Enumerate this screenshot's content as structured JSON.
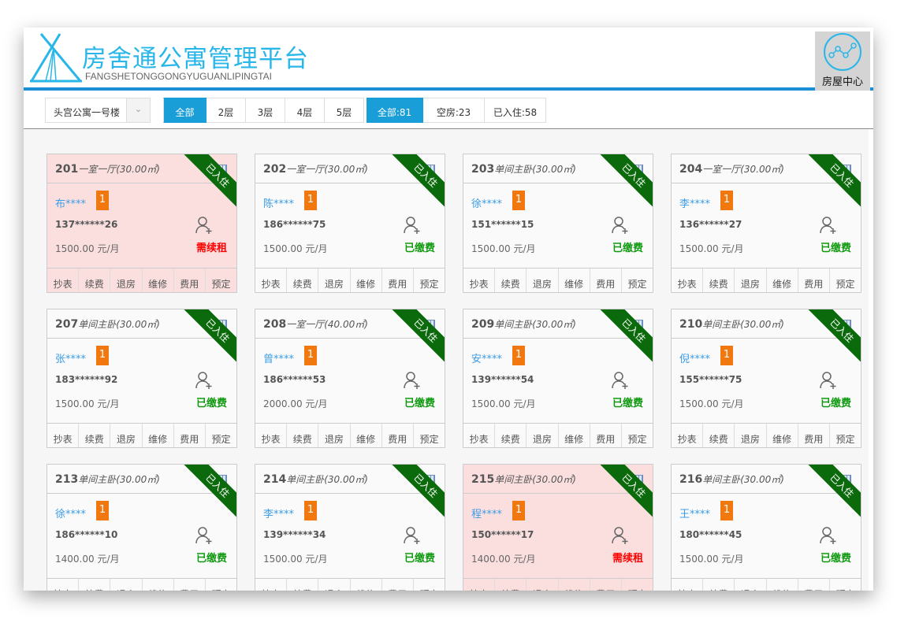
{
  "header": {
    "title": "房舍通公寓管理平台",
    "subtitle": "FANGSHETONGGONGYUGUANLIPINGTAI",
    "house_center": "房屋中心",
    "brand_color": "#29b6e8",
    "accent": "#1a9ed8"
  },
  "toolbar": {
    "building": "头宫公寓一号楼",
    "floors": [
      "全部",
      "2层",
      "3层",
      "4层",
      "5层"
    ],
    "active_floor": 0,
    "filters": [
      "全部:81",
      "空房:23",
      "已入住:58"
    ],
    "active_filter": 0
  },
  "card_actions": [
    "抄表",
    "续费",
    "退房",
    "维修",
    "费用",
    "预定"
  ],
  "ribbon": "已入住",
  "rooms": [
    {
      "num": "201",
      "type": "一室一厅(30.00㎡)",
      "name": "布****",
      "count": "1",
      "phone": "137******26",
      "rent": "1500.00 元/月",
      "status": "需续租",
      "warn": true
    },
    {
      "num": "202",
      "type": "一室一厅(30.00㎡)",
      "name": "陈****",
      "count": "1",
      "phone": "186******75",
      "rent": "1500.00 元/月",
      "status": "已缴费",
      "warn": false
    },
    {
      "num": "203",
      "type": "单间主卧(30.00㎡)",
      "name": "徐****",
      "count": "1",
      "phone": "151******15",
      "rent": "1500.00 元/月",
      "status": "已缴费",
      "warn": false
    },
    {
      "num": "204",
      "type": "一室一厅(30.00㎡)",
      "name": "李****",
      "count": "1",
      "phone": "136******27",
      "rent": "1500.00 元/月",
      "status": "已缴费",
      "warn": false
    },
    {
      "num": "207",
      "type": "单间主卧(30.00㎡)",
      "name": "张****",
      "count": "1",
      "phone": "183******92",
      "rent": "1500.00 元/月",
      "status": "已缴费",
      "warn": false
    },
    {
      "num": "208",
      "type": "一室一厅(40.00㎡)",
      "name": "曾****",
      "count": "1",
      "phone": "186******53",
      "rent": "2000.00 元/月",
      "status": "已缴费",
      "warn": false
    },
    {
      "num": "209",
      "type": "单间主卧(30.00㎡)",
      "name": "安****",
      "count": "1",
      "phone": "139******54",
      "rent": "1500.00 元/月",
      "status": "已缴费",
      "warn": false
    },
    {
      "num": "210",
      "type": "单间主卧(30.00㎡)",
      "name": "倪****",
      "count": "1",
      "phone": "155******75",
      "rent": "1500.00 元/月",
      "status": "已缴费",
      "warn": false
    },
    {
      "num": "213",
      "type": "单间主卧(30.00㎡)",
      "name": "徐****",
      "count": "1",
      "phone": "186******10",
      "rent": "1400.00 元/月",
      "status": "已缴费",
      "warn": false
    },
    {
      "num": "214",
      "type": "单间主卧(30.00㎡)",
      "name": "李****",
      "count": "1",
      "phone": "139******34",
      "rent": "1500.00 元/月",
      "status": "已缴费",
      "warn": false
    },
    {
      "num": "215",
      "type": "单间主卧(30.00㎡)",
      "name": "程****",
      "count": "1",
      "phone": "150******17",
      "rent": "1400.00 元/月",
      "status": "需续租",
      "warn": true
    },
    {
      "num": "216",
      "type": "单间主卧(30.00㎡)",
      "name": "王****",
      "count": "1",
      "phone": "180******45",
      "rent": "1500.00 元/月",
      "status": "已缴费",
      "warn": false
    }
  ],
  "status_colors": {
    "需续租": "#ff0000",
    "已缴费": "#109a10"
  }
}
